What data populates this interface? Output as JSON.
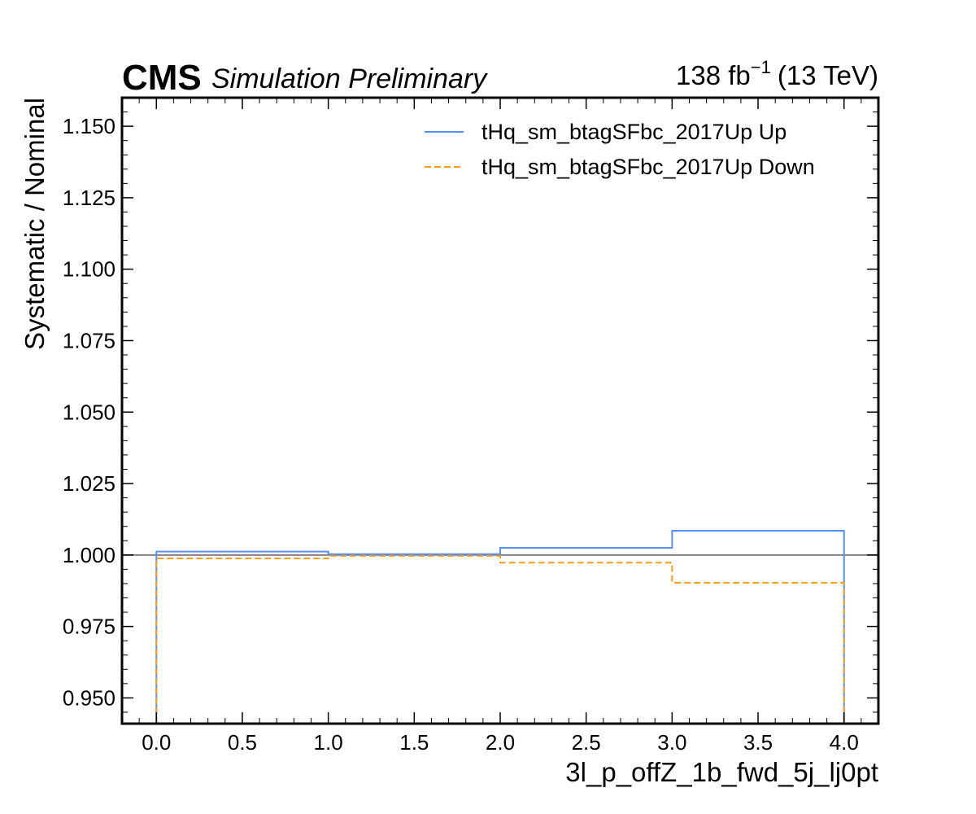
{
  "header": {
    "cms_label": "CMS",
    "sub_label": "Simulation Preliminary",
    "lumi_value": "138 fb",
    "lumi_exponent": "−1",
    "energy": "(13 TeV)"
  },
  "chart_data": {
    "type": "line",
    "xlabel": "3l_p_offZ_1b_fwd_5j_lj0pt",
    "ylabel": "Systematic / Nominal",
    "xlim": [
      -0.2,
      4.2
    ],
    "ylim": [
      0.941,
      1.16
    ],
    "bin_edges": [
      0,
      1,
      2,
      3,
      4
    ],
    "x_ticks": [
      0.0,
      0.5,
      1.0,
      1.5,
      2.0,
      2.5,
      3.0,
      3.5,
      4.0
    ],
    "x_tick_labels": [
      "0.0",
      "0.5",
      "1.0",
      "1.5",
      "2.0",
      "2.5",
      "3.0",
      "3.5",
      "4.0"
    ],
    "y_ticks": [
      0.95,
      0.975,
      1.0,
      1.025,
      1.05,
      1.075,
      1.1,
      1.125,
      1.15
    ],
    "y_tick_labels": [
      "0.950",
      "0.975",
      "1.000",
      "1.025",
      "1.050",
      "1.075",
      "1.100",
      "1.125",
      "1.150"
    ],
    "reference_line": 1.0,
    "legend_position": "top-right",
    "grid": false,
    "series": [
      {
        "name": "tHq_sm_btagSFbc_2017Up Up",
        "style": "solid",
        "color": "#5790fc",
        "values": [
          1.0012,
          1.0003,
          1.0025,
          1.0085
        ]
      },
      {
        "name": "tHq_sm_btagSFbc_2017Up Down",
        "style": "dashed",
        "color": "#f89c20",
        "values": [
          0.9988,
          0.9997,
          0.9973,
          0.9903
        ]
      }
    ]
  },
  "colors": {
    "reference_line": "#808080",
    "frame": "#000000"
  }
}
